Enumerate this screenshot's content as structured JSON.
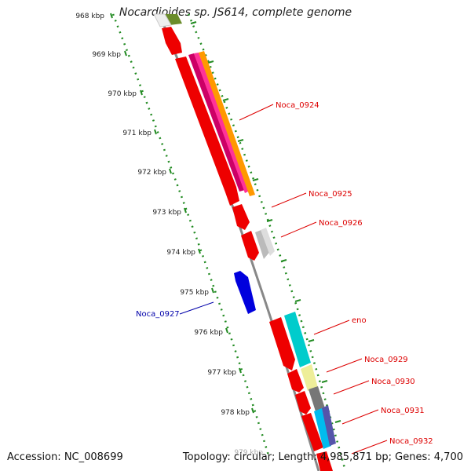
{
  "title": "Nocardioides sp. JS614, complete genome",
  "footer": {
    "accession": "Accession: NC_008699",
    "stats": "Topology: circular; Length: 4,985,871 bp; Genes: 4,700"
  },
  "colors": {
    "tick_ruler": "#228b22",
    "backbone": "#888888",
    "forward_label": "#dd0000",
    "reverse_label": "#0000aa"
  },
  "scale_labels": [
    "968 kbp",
    "969 kbp",
    "970 kbp",
    "971 kbp",
    "972 kbp",
    "973 kbp",
    "974 kbp",
    "975 kbp",
    "976 kbp",
    "977 kbp",
    "978 kbp",
    "979 kbp"
  ],
  "gene_labels": [
    {
      "text": "Noca_0924",
      "strand": "forward"
    },
    {
      "text": "Noca_0925",
      "strand": "forward"
    },
    {
      "text": "Noca_0926",
      "strand": "forward"
    },
    {
      "text": "Noca_0927",
      "strand": "reverse"
    },
    {
      "text": "eno",
      "strand": "forward"
    },
    {
      "text": "Noca_0929",
      "strand": "forward"
    },
    {
      "text": "Noca_0930",
      "strand": "forward"
    },
    {
      "text": "Noca_0931",
      "strand": "forward"
    },
    {
      "text": "Noca_0932",
      "strand": "forward"
    }
  ]
}
